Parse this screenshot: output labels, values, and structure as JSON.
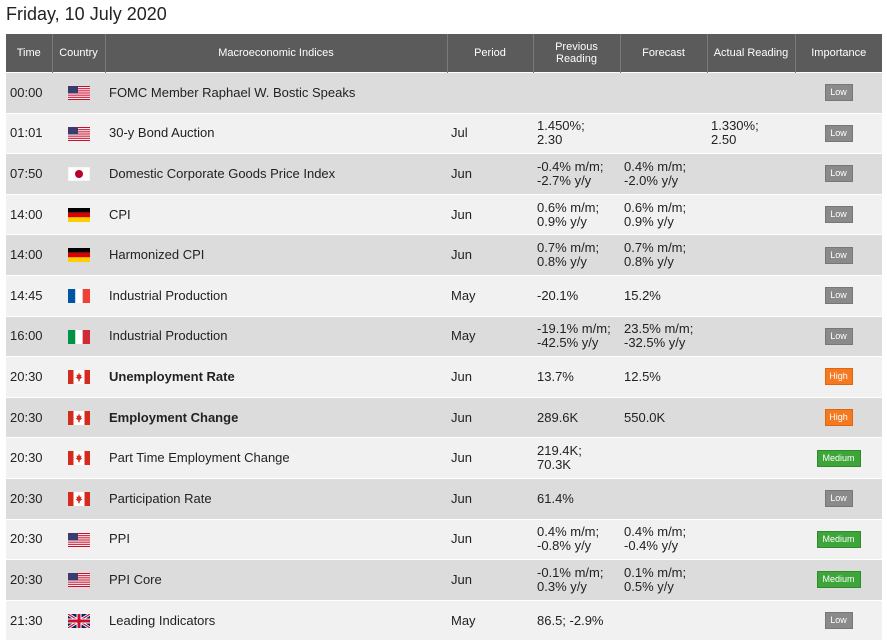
{
  "page_title": "Friday, 10 July 2020",
  "headers": {
    "time": "Time",
    "country": "Country",
    "indices": "Macroeconomic Indices",
    "period": "Period",
    "previous": "Previous Reading",
    "forecast": "Forecast",
    "actual": "Actual Reading",
    "importance": "Importance"
  },
  "colors": {
    "header_bg": "#5b5b5b",
    "low": "#8a8a8a",
    "medium": "#3da539",
    "high": "#f47920"
  },
  "rows": [
    {
      "time": "00:00",
      "flag": "us-flag-icon",
      "index": "FOMC Member Raphael W. Bostic Speaks",
      "bold": false,
      "period": "",
      "prev1": "",
      "prev2": "",
      "fc1": "",
      "fc2": "",
      "act1": "",
      "act2": "",
      "importance": "Low"
    },
    {
      "time": "01:01",
      "flag": "us-flag-icon",
      "index": "30-y Bond Auction",
      "bold": false,
      "period": "Jul",
      "prev1": "1.450%;",
      "prev2": "2.30",
      "fc1": "",
      "fc2": "",
      "act1": "1.330%;",
      "act2": "2.50",
      "importance": "Low"
    },
    {
      "time": "07:50",
      "flag": "jp-flag-icon",
      "index": "Domestic Corporate Goods Price Index",
      "bold": false,
      "period": "Jun",
      "prev1": "-0.4% m/m;",
      "prev2": "-2.7% y/y",
      "fc1": "0.4% m/m;",
      "fc2": "-2.0% y/y",
      "act1": "",
      "act2": "",
      "importance": "Low"
    },
    {
      "time": "14:00",
      "flag": "de-flag-icon",
      "index": "CPI",
      "bold": false,
      "period": "Jun",
      "prev1": "0.6% m/m;",
      "prev2": "0.9% y/y",
      "fc1": "0.6% m/m;",
      "fc2": "0.9% y/y",
      "act1": "",
      "act2": "",
      "importance": "Low"
    },
    {
      "time": "14:00",
      "flag": "de-flag-icon",
      "index": "Harmonized CPI",
      "bold": false,
      "period": "Jun",
      "prev1": "0.7% m/m;",
      "prev2": "0.8% y/y",
      "fc1": "0.7% m/m;",
      "fc2": "0.8% y/y",
      "act1": "",
      "act2": "",
      "importance": "Low"
    },
    {
      "time": "14:45",
      "flag": "fr-flag-icon",
      "index": "Industrial Production",
      "bold": false,
      "period": "May",
      "prev1": "-20.1%",
      "prev2": "",
      "fc1": "15.2%",
      "fc2": "",
      "act1": "",
      "act2": "",
      "importance": "Low"
    },
    {
      "time": "16:00",
      "flag": "it-flag-icon",
      "index": "Industrial Production",
      "bold": false,
      "period": "May",
      "prev1": "-19.1% m/m;",
      "prev2": "-42.5% y/y",
      "fc1": "23.5% m/m;",
      "fc2": "-32.5% y/y",
      "act1": "",
      "act2": "",
      "importance": "Low"
    },
    {
      "time": "20:30",
      "flag": "ca-flag-icon",
      "index": "Unemployment Rate",
      "bold": true,
      "period": "Jun",
      "prev1": "13.7%",
      "prev2": "",
      "fc1": "12.5%",
      "fc2": "",
      "act1": "",
      "act2": "",
      "importance": "High"
    },
    {
      "time": "20:30",
      "flag": "ca-flag-icon",
      "index": "Employment Change",
      "bold": true,
      "period": "Jun",
      "prev1": "289.6K",
      "prev2": "",
      "fc1": "550.0K",
      "fc2": "",
      "act1": "",
      "act2": "",
      "importance": "High"
    },
    {
      "time": "20:30",
      "flag": "ca-flag-icon",
      "index": "Part Time Employment Change",
      "bold": false,
      "period": "Jun",
      "prev1": "219.4K;",
      "prev2": "70.3K",
      "fc1": "",
      "fc2": "",
      "act1": "",
      "act2": "",
      "importance": "Medium"
    },
    {
      "time": "20:30",
      "flag": "ca-flag-icon",
      "index": "Participation Rate",
      "bold": false,
      "period": "Jun",
      "prev1": "61.4%",
      "prev2": "",
      "fc1": "",
      "fc2": "",
      "act1": "",
      "act2": "",
      "importance": "Low"
    },
    {
      "time": "20:30",
      "flag": "us-flag-icon",
      "index": "PPI",
      "bold": false,
      "period": "Jun",
      "prev1": "0.4% m/m;",
      "prev2": "-0.8% y/y",
      "fc1": "0.4% m/m;",
      "fc2": "-0.4% y/y",
      "act1": "",
      "act2": "",
      "importance": "Medium"
    },
    {
      "time": "20:30",
      "flag": "us-flag-icon",
      "index": "PPI Core",
      "bold": false,
      "period": "Jun",
      "prev1": "-0.1% m/m;",
      "prev2": "0.3% y/y",
      "fc1": "0.1% m/m;",
      "fc2": "0.5% y/y",
      "act1": "",
      "act2": "",
      "importance": "Medium"
    },
    {
      "time": "21:30",
      "flag": "gb-flag-icon",
      "index": "Leading Indicators",
      "bold": false,
      "period": "May",
      "prev1": "86.5; -2.9%",
      "prev2": "",
      "fc1": "",
      "fc2": "",
      "act1": "",
      "act2": "",
      "importance": "Low"
    }
  ]
}
